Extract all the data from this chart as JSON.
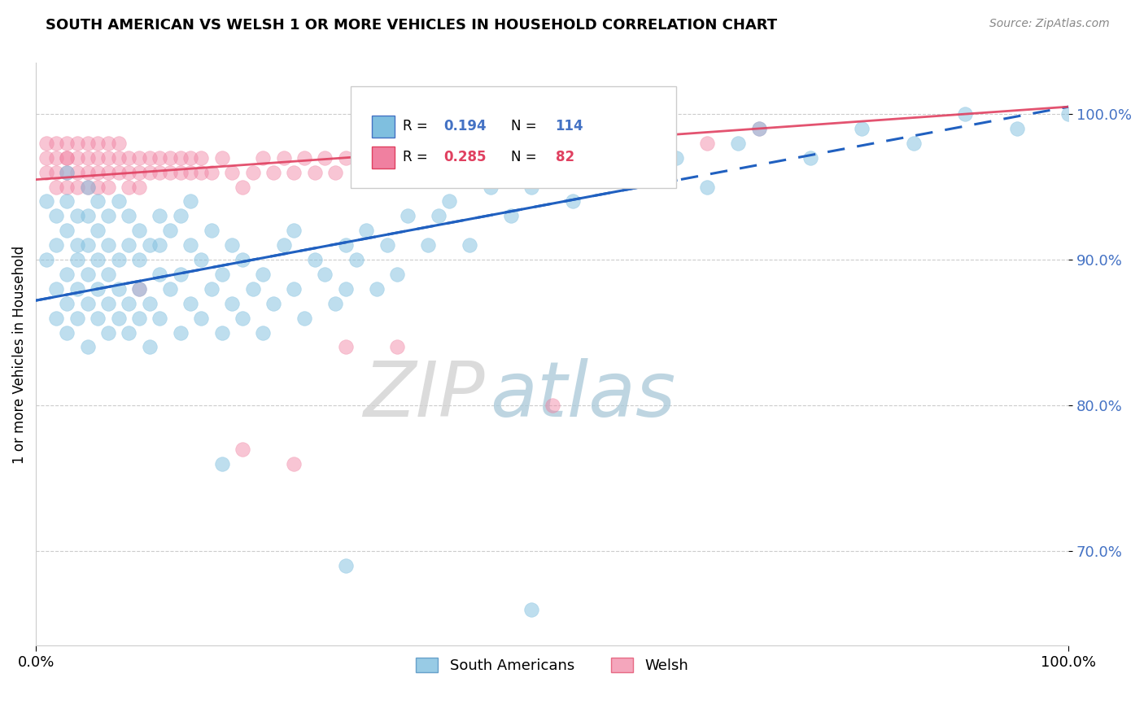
{
  "title": "SOUTH AMERICAN VS WELSH 1 OR MORE VEHICLES IN HOUSEHOLD CORRELATION CHART",
  "source": "Source: ZipAtlas.com",
  "ylabel": "1 or more Vehicles in Household",
  "xlim": [
    0.0,
    1.0
  ],
  "ylim": [
    0.635,
    1.035
  ],
  "yticks": [
    0.7,
    0.8,
    0.9,
    1.0
  ],
  "ytick_labels": [
    "70.0%",
    "80.0%",
    "90.0%",
    "100.0%"
  ],
  "xticks": [
    0.0,
    1.0
  ],
  "xtick_labels": [
    "0.0%",
    "100.0%"
  ],
  "legend_entries": [
    "South Americans",
    "Welsh"
  ],
  "r_sa": 0.194,
  "n_sa": 114,
  "r_welsh": 0.285,
  "n_welsh": 82,
  "color_sa": "#7fbfdf",
  "color_welsh": "#f080a0",
  "color_sa_line": "#2060c0",
  "color_welsh_line": "#e04060",
  "watermark_zip": "ZIP",
  "watermark_atlas": "atlas",
  "sa_x": [
    0.01,
    0.01,
    0.02,
    0.02,
    0.02,
    0.02,
    0.03,
    0.03,
    0.03,
    0.03,
    0.03,
    0.03,
    0.04,
    0.04,
    0.04,
    0.04,
    0.04,
    0.05,
    0.05,
    0.05,
    0.05,
    0.05,
    0.05,
    0.06,
    0.06,
    0.06,
    0.06,
    0.06,
    0.07,
    0.07,
    0.07,
    0.07,
    0.07,
    0.08,
    0.08,
    0.08,
    0.08,
    0.09,
    0.09,
    0.09,
    0.09,
    0.1,
    0.1,
    0.1,
    0.1,
    0.11,
    0.11,
    0.11,
    0.12,
    0.12,
    0.12,
    0.12,
    0.13,
    0.13,
    0.14,
    0.14,
    0.14,
    0.15,
    0.15,
    0.15,
    0.16,
    0.16,
    0.17,
    0.17,
    0.18,
    0.18,
    0.19,
    0.19,
    0.2,
    0.2,
    0.21,
    0.22,
    0.22,
    0.23,
    0.24,
    0.25,
    0.25,
    0.26,
    0.27,
    0.28,
    0.29,
    0.3,
    0.3,
    0.31,
    0.32,
    0.33,
    0.34,
    0.35,
    0.36,
    0.38,
    0.39,
    0.4,
    0.42,
    0.44,
    0.46,
    0.48,
    0.5,
    0.52,
    0.55,
    0.58,
    0.6,
    0.62,
    0.65,
    0.68,
    0.7,
    0.75,
    0.8,
    0.85,
    0.9,
    0.95,
    1.0,
    0.48,
    0.3,
    0.18
  ],
  "sa_y": [
    0.9,
    0.94,
    0.91,
    0.88,
    0.86,
    0.93,
    0.89,
    0.87,
    0.92,
    0.85,
    0.94,
    0.96,
    0.88,
    0.91,
    0.86,
    0.93,
    0.9,
    0.87,
    0.89,
    0.93,
    0.91,
    0.95,
    0.84,
    0.88,
    0.92,
    0.86,
    0.9,
    0.94,
    0.85,
    0.89,
    0.93,
    0.87,
    0.91,
    0.86,
    0.9,
    0.94,
    0.88,
    0.87,
    0.91,
    0.85,
    0.93,
    0.88,
    0.92,
    0.86,
    0.9,
    0.87,
    0.91,
    0.84,
    0.89,
    0.93,
    0.86,
    0.91,
    0.88,
    0.92,
    0.85,
    0.89,
    0.93,
    0.87,
    0.91,
    0.94,
    0.86,
    0.9,
    0.88,
    0.92,
    0.85,
    0.89,
    0.87,
    0.91,
    0.86,
    0.9,
    0.88,
    0.85,
    0.89,
    0.87,
    0.91,
    0.88,
    0.92,
    0.86,
    0.9,
    0.89,
    0.87,
    0.91,
    0.88,
    0.9,
    0.92,
    0.88,
    0.91,
    0.89,
    0.93,
    0.91,
    0.93,
    0.94,
    0.91,
    0.95,
    0.93,
    0.95,
    0.97,
    0.94,
    0.96,
    0.98,
    0.96,
    0.97,
    0.95,
    0.98,
    0.99,
    0.97,
    0.99,
    0.98,
    1.0,
    0.99,
    1.0,
    0.66,
    0.69,
    0.76
  ],
  "welsh_x": [
    0.01,
    0.01,
    0.01,
    0.02,
    0.02,
    0.02,
    0.02,
    0.03,
    0.03,
    0.03,
    0.03,
    0.03,
    0.04,
    0.04,
    0.04,
    0.04,
    0.05,
    0.05,
    0.05,
    0.05,
    0.06,
    0.06,
    0.06,
    0.06,
    0.07,
    0.07,
    0.07,
    0.07,
    0.08,
    0.08,
    0.08,
    0.09,
    0.09,
    0.09,
    0.1,
    0.1,
    0.1,
    0.11,
    0.11,
    0.12,
    0.12,
    0.13,
    0.13,
    0.14,
    0.14,
    0.15,
    0.15,
    0.16,
    0.16,
    0.17,
    0.18,
    0.19,
    0.2,
    0.21,
    0.22,
    0.23,
    0.24,
    0.25,
    0.26,
    0.27,
    0.28,
    0.29,
    0.3,
    0.32,
    0.34,
    0.36,
    0.38,
    0.4,
    0.42,
    0.44,
    0.46,
    0.5,
    0.55,
    0.6,
    0.65,
    0.7,
    0.3,
    0.2,
    0.1,
    0.35,
    0.25,
    0.5
  ],
  "welsh_y": [
    0.96,
    0.98,
    0.97,
    0.97,
    0.96,
    0.98,
    0.95,
    0.97,
    0.96,
    0.98,
    0.95,
    0.97,
    0.96,
    0.98,
    0.97,
    0.95,
    0.96,
    0.98,
    0.97,
    0.95,
    0.96,
    0.97,
    0.98,
    0.95,
    0.96,
    0.97,
    0.98,
    0.95,
    0.96,
    0.97,
    0.98,
    0.96,
    0.97,
    0.95,
    0.96,
    0.97,
    0.95,
    0.96,
    0.97,
    0.96,
    0.97,
    0.96,
    0.97,
    0.96,
    0.97,
    0.96,
    0.97,
    0.96,
    0.97,
    0.96,
    0.97,
    0.96,
    0.95,
    0.96,
    0.97,
    0.96,
    0.97,
    0.96,
    0.97,
    0.96,
    0.97,
    0.96,
    0.97,
    0.96,
    0.97,
    0.97,
    0.98,
    0.97,
    0.97,
    0.98,
    0.97,
    0.98,
    0.97,
    0.99,
    0.98,
    0.99,
    0.84,
    0.77,
    0.88,
    0.84,
    0.76,
    0.8
  ],
  "sa_line_x": [
    0.0,
    1.0
  ],
  "sa_line_y": [
    0.872,
    1.005
  ],
  "sa_line_solid_end": 0.62,
  "welsh_line_x": [
    0.0,
    1.0
  ],
  "welsh_line_y": [
    0.955,
    1.005
  ]
}
